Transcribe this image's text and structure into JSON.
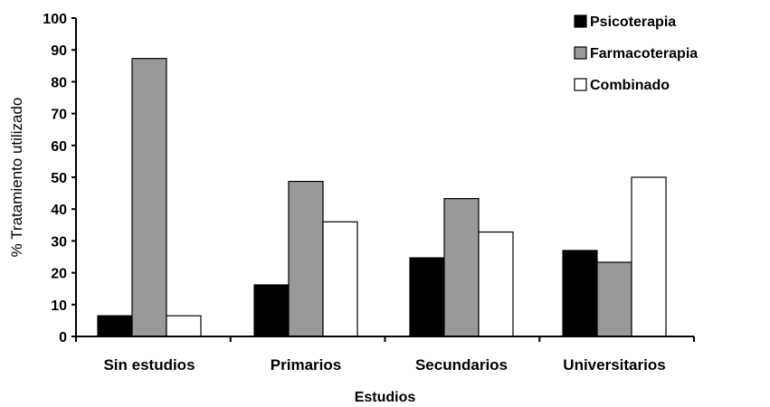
{
  "chart_data": {
    "type": "bar",
    "title": "",
    "xlabel": "Estudios",
    "ylabel": "% Tratamiento utilizado",
    "categories": [
      "Sin estudios",
      "Primarios",
      "Secundarios",
      "Universitarios"
    ],
    "series": [
      {
        "name": "Psicoterapia",
        "values": [
          6.5,
          16.2,
          24.7,
          27.0
        ],
        "color": "#000000"
      },
      {
        "name": "Farmacoterapia",
        "values": [
          87.3,
          48.7,
          43.3,
          23.3
        ],
        "color": "#999999"
      },
      {
        "name": "Combinado",
        "values": [
          6.5,
          36.0,
          32.8,
          50.0
        ],
        "color": "#ffffff"
      }
    ],
    "ylim": [
      0,
      100
    ],
    "yticks": [
      "0",
      "10",
      "20",
      "30",
      "40",
      "50",
      "60",
      "70",
      "80",
      "90",
      "100"
    ],
    "grid": false,
    "legend_position": "top-right"
  }
}
